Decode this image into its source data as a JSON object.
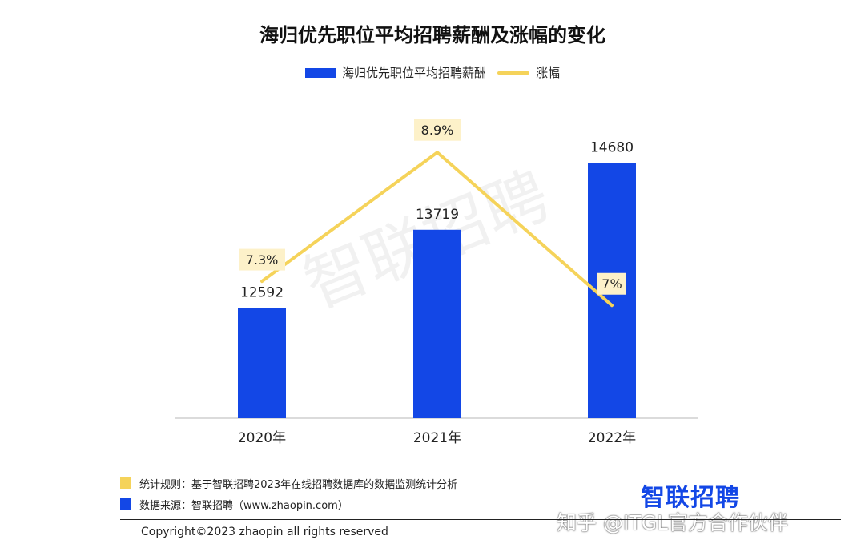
{
  "chart_data": {
    "type": "bar",
    "title": "海归优先职位平均招聘薪酬及涨幅的变化",
    "categories": [
      "2020年",
      "2021年",
      "2022年"
    ],
    "series": [
      {
        "name": "海归优先职位平均招聘薪酬",
        "kind": "bar",
        "values": [
          12592,
          13719,
          14680
        ],
        "labels": [
          "12592",
          "13719",
          "14680"
        ],
        "color": "#1347e6"
      },
      {
        "name": "涨幅",
        "kind": "line",
        "values": [
          7.3,
          8.9,
          7.0
        ],
        "labels": [
          "7.3%",
          "8.9%",
          "7%"
        ],
        "color": "#f5d35a"
      }
    ],
    "bar_axis_range": [
      11000,
      15300
    ],
    "line_axis_range": [
      5.6,
      9.3
    ],
    "grid": false,
    "legend_position": "top-center"
  },
  "footer": {
    "rule_note": "统计规则：基于智联招聘2023年在线招聘数据库的数据监测统计分析",
    "source_note": "数据来源：智联招聘（www.zhaopin.com）",
    "copyright": "Copyright©2023 zhaopin all rights reserved",
    "rule_color": "#f5d35a",
    "source_color": "#1347e6"
  },
  "brand": {
    "logo": "智联招聘",
    "watermark": "智联招聘",
    "zhihu_mark": "知乎 @ITGL官方合作伙伴"
  }
}
